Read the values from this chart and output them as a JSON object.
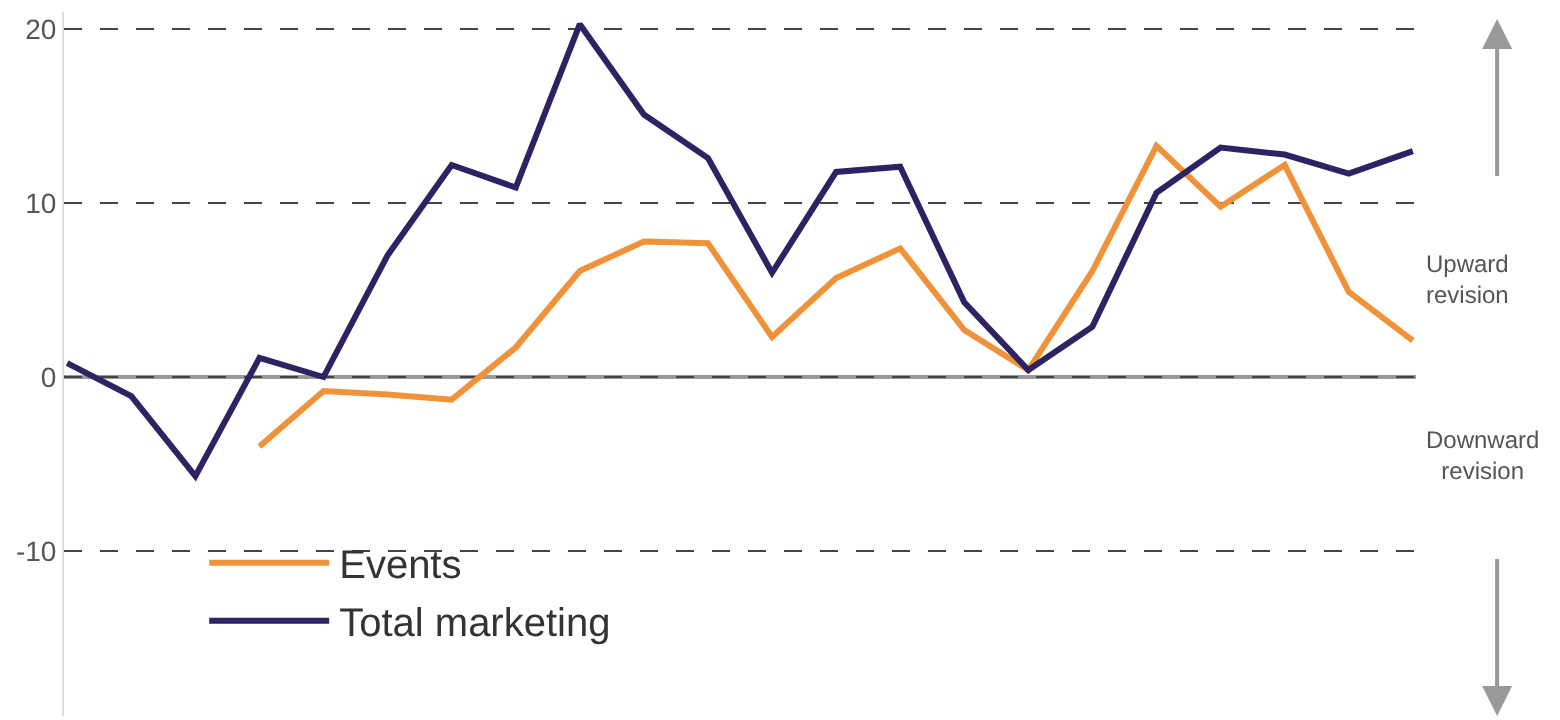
{
  "chart_data": {
    "type": "line",
    "categories": [
      null,
      null,
      null,
      null,
      null,
      null,
      null,
      null,
      null,
      null,
      null,
      null,
      null,
      null,
      null,
      null,
      null,
      null,
      null,
      null,
      null,
      null
    ],
    "series": [
      {
        "name": "Events",
        "color": "#f0923a",
        "values": [
          null,
          null,
          null,
          -4,
          -0.8,
          -1.0,
          -1.3,
          1.7,
          6.1,
          7.8,
          7.7,
          2.3,
          5.7,
          7.4,
          2.7,
          0.4,
          6.1,
          13.3,
          9.8,
          12.2,
          4.9,
          2.1
        ]
      },
      {
        "name": "Total marketing",
        "color": "#2b2362",
        "values": [
          0.8,
          -1.1,
          -5.7,
          1.1,
          0,
          7,
          12.2,
          10.9,
          20.3,
          15.1,
          12.6,
          6,
          11.8,
          12.1,
          4.3,
          0.4,
          2.9,
          10.6,
          13.2,
          12.8,
          11.7,
          13
        ]
      }
    ],
    "ylim": [
      -19.5,
      21
    ],
    "yticks": [
      -10,
      0,
      10,
      20
    ],
    "grid": "y",
    "legend": "bottom left",
    "line_style": "solid",
    "marker": "none",
    "ref_lines": [
      {
        "axis": "y",
        "value": 0,
        "color": "#999999",
        "line_style": "solid"
      }
    ],
    "annotations": [
      "Upward\nrevision",
      "Downward\nrevision"
    ]
  }
}
